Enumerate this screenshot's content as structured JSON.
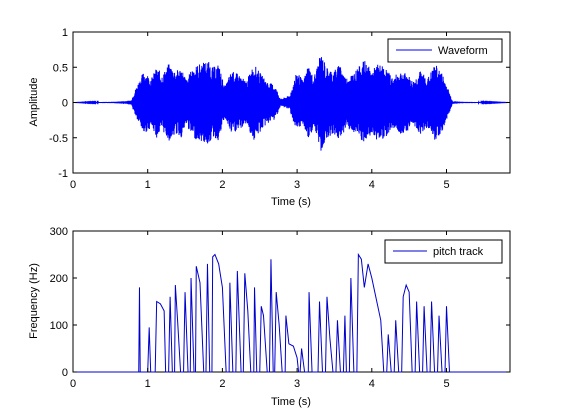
{
  "chart_data": [
    {
      "type": "line",
      "xlabel": "Time (s)",
      "ylabel": "Amplitude",
      "xlim": [
        0,
        5.85
      ],
      "ylim": [
        -1,
        1
      ],
      "xticks": [
        "0",
        "1",
        "2",
        "3",
        "4",
        "5"
      ],
      "yticks": [
        "-1",
        "-0.5",
        "0",
        "0.5",
        "1"
      ],
      "legend_position": "top-right",
      "grid": false,
      "color": "#0000ff",
      "series": [
        {
          "name": "Waveform",
          "envelope": [
            [
              0.0,
              0.0
            ],
            [
              0.55,
              0.01
            ],
            [
              0.7,
              0.02
            ],
            [
              0.78,
              0.03
            ],
            [
              0.82,
              0.15
            ],
            [
              0.88,
              0.3
            ],
            [
              0.95,
              0.45
            ],
            [
              1.05,
              0.35
            ],
            [
              1.12,
              0.5
            ],
            [
              1.2,
              0.4
            ],
            [
              1.28,
              0.55
            ],
            [
              1.38,
              0.45
            ],
            [
              1.45,
              0.5
            ],
            [
              1.52,
              0.32
            ],
            [
              1.6,
              0.5
            ],
            [
              1.7,
              0.55
            ],
            [
              1.8,
              0.6
            ],
            [
              1.88,
              0.5
            ],
            [
              1.95,
              0.55
            ],
            [
              2.03,
              0.22
            ],
            [
              2.12,
              0.45
            ],
            [
              2.22,
              0.4
            ],
            [
              2.32,
              0.3
            ],
            [
              2.42,
              0.55
            ],
            [
              2.52,
              0.4
            ],
            [
              2.6,
              0.3
            ],
            [
              2.7,
              0.25
            ],
            [
              2.78,
              0.05
            ],
            [
              2.9,
              0.1
            ],
            [
              3.0,
              0.45
            ],
            [
              3.08,
              0.3
            ],
            [
              3.15,
              0.55
            ],
            [
              3.22,
              0.35
            ],
            [
              3.32,
              0.7
            ],
            [
              3.4,
              0.5
            ],
            [
              3.48,
              0.45
            ],
            [
              3.58,
              0.55
            ],
            [
              3.65,
              0.35
            ],
            [
              3.78,
              0.45
            ],
            [
              3.9,
              0.6
            ],
            [
              4.0,
              0.45
            ],
            [
              4.08,
              0.55
            ],
            [
              4.18,
              0.5
            ],
            [
              4.28,
              0.35
            ],
            [
              4.38,
              0.45
            ],
            [
              4.48,
              0.4
            ],
            [
              4.55,
              0.3
            ],
            [
              4.65,
              0.45
            ],
            [
              4.75,
              0.35
            ],
            [
              4.85,
              0.55
            ],
            [
              4.95,
              0.4
            ],
            [
              5.02,
              0.2
            ],
            [
              5.08,
              0.02
            ],
            [
              5.2,
              0.01
            ],
            [
              5.85,
              0.0
            ]
          ]
        }
      ]
    },
    {
      "type": "line",
      "xlabel": "Time (s)",
      "ylabel": "Frequency (Hz)",
      "xlim": [
        0,
        5.85
      ],
      "ylim": [
        0,
        300
      ],
      "xticks": [
        "0",
        "1",
        "2",
        "3",
        "4",
        "5"
      ],
      "yticks": [
        "0",
        "100",
        "200",
        "300"
      ],
      "legend_position": "top-right",
      "grid": false,
      "color": "#0000cc",
      "series": [
        {
          "name": "pitch track",
          "points": [
            [
              0.0,
              0
            ],
            [
              0.88,
              0
            ],
            [
              0.89,
              180
            ],
            [
              0.9,
              0
            ],
            [
              1.0,
              0
            ],
            [
              1.02,
              95
            ],
            [
              1.04,
              0
            ],
            [
              1.1,
              0
            ],
            [
              1.12,
              150
            ],
            [
              1.17,
              145
            ],
            [
              1.22,
              130
            ],
            [
              1.24,
              0
            ],
            [
              1.28,
              0
            ],
            [
              1.3,
              160
            ],
            [
              1.33,
              0
            ],
            [
              1.36,
              0
            ],
            [
              1.37,
              185
            ],
            [
              1.4,
              110
            ],
            [
              1.44,
              0
            ],
            [
              1.48,
              0
            ],
            [
              1.5,
              170
            ],
            [
              1.54,
              0
            ],
            [
              1.57,
              0
            ],
            [
              1.58,
              200
            ],
            [
              1.62,
              0
            ],
            [
              1.64,
              0
            ],
            [
              1.65,
              225
            ],
            [
              1.7,
              190
            ],
            [
              1.75,
              0
            ],
            [
              1.78,
              0
            ],
            [
              1.8,
              230
            ],
            [
              1.83,
              0
            ],
            [
              1.86,
              0
            ],
            [
              1.87,
              245
            ],
            [
              1.9,
              250
            ],
            [
              1.95,
              230
            ],
            [
              2.0,
              180
            ],
            [
              2.05,
              0
            ],
            [
              2.09,
              0
            ],
            [
              2.1,
              190
            ],
            [
              2.14,
              0
            ],
            [
              2.18,
              0
            ],
            [
              2.2,
              215
            ],
            [
              2.25,
              0
            ],
            [
              2.28,
              0
            ],
            [
              2.3,
              210
            ],
            [
              2.34,
              130
            ],
            [
              2.38,
              0
            ],
            [
              2.42,
              0
            ],
            [
              2.43,
              180
            ],
            [
              2.46,
              0
            ],
            [
              2.5,
              0
            ],
            [
              2.52,
              140
            ],
            [
              2.55,
              120
            ],
            [
              2.6,
              0
            ],
            [
              2.63,
              0
            ],
            [
              2.65,
              240
            ],
            [
              2.68,
              0
            ],
            [
              2.7,
              0
            ],
            [
              2.72,
              170
            ],
            [
              2.76,
              100
            ],
            [
              2.8,
              0
            ],
            [
              2.84,
              0
            ],
            [
              2.85,
              120
            ],
            [
              2.89,
              60
            ],
            [
              2.95,
              55
            ],
            [
              3.0,
              30
            ],
            [
              3.02,
              0
            ],
            [
              3.04,
              0
            ],
            [
              3.06,
              50
            ],
            [
              3.1,
              0
            ],
            [
              3.15,
              0
            ],
            [
              3.16,
              170
            ],
            [
              3.2,
              0
            ],
            [
              3.28,
              0
            ],
            [
              3.3,
              150
            ],
            [
              3.34,
              0
            ],
            [
              3.38,
              0
            ],
            [
              3.4,
              160
            ],
            [
              3.44,
              70
            ],
            [
              3.48,
              0
            ],
            [
              3.52,
              0
            ],
            [
              3.54,
              110
            ],
            [
              3.58,
              0
            ],
            [
              3.62,
              0
            ],
            [
              3.64,
              120
            ],
            [
              3.66,
              0
            ],
            [
              3.7,
              0
            ],
            [
              3.72,
              200
            ],
            [
              3.76,
              0
            ],
            [
              3.8,
              0
            ],
            [
              3.82,
              250
            ],
            [
              3.86,
              240
            ],
            [
              3.9,
              180
            ],
            [
              3.95,
              230
            ],
            [
              4.0,
              200
            ],
            [
              4.04,
              170
            ],
            [
              4.08,
              140
            ],
            [
              4.12,
              110
            ],
            [
              4.16,
              0
            ],
            [
              4.2,
              0
            ],
            [
              4.22,
              80
            ],
            [
              4.26,
              0
            ],
            [
              4.3,
              0
            ],
            [
              4.32,
              110
            ],
            [
              4.36,
              0
            ],
            [
              4.4,
              0
            ],
            [
              4.42,
              160
            ],
            [
              4.46,
              185
            ],
            [
              4.5,
              170
            ],
            [
              4.54,
              0
            ],
            [
              4.58,
              0
            ],
            [
              4.6,
              150
            ],
            [
              4.64,
              0
            ],
            [
              4.68,
              0
            ],
            [
              4.7,
              140
            ],
            [
              4.74,
              0
            ],
            [
              4.78,
              0
            ],
            [
              4.8,
              150
            ],
            [
              4.84,
              0
            ],
            [
              4.88,
              0
            ],
            [
              4.9,
              120
            ],
            [
              4.94,
              0
            ],
            [
              4.98,
              0
            ],
            [
              5.0,
              140
            ],
            [
              5.04,
              0
            ],
            [
              5.85,
              0
            ]
          ]
        }
      ]
    }
  ]
}
